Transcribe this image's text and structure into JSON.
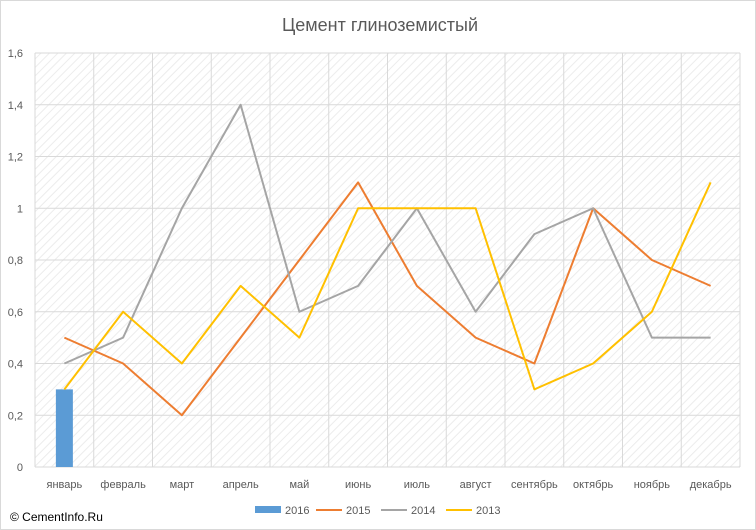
{
  "chart_data": {
    "type": "line",
    "title": "Цемент глиноземистый",
    "categories": [
      "январь",
      "февраль",
      "март",
      "апрель",
      "май",
      "июнь",
      "июль",
      "август",
      "сентябрь",
      "октябрь",
      "ноябрь",
      "декабрь"
    ],
    "ylim": [
      0,
      1.6
    ],
    "yticks": [
      "0",
      "0,2",
      "0,4",
      "0,6",
      "0,8",
      "1",
      "1,2",
      "1,4",
      "1,6"
    ],
    "ytick_values": [
      0,
      0.2,
      0.4,
      0.6,
      0.8,
      1.0,
      1.2,
      1.4,
      1.6
    ],
    "grid": true,
    "legend_position": "bottom",
    "series": [
      {
        "name": "2016",
        "type": "bar",
        "color": "#5B9BD5",
        "values": [
          0.3,
          null,
          null,
          null,
          null,
          null,
          null,
          null,
          null,
          null,
          null,
          null
        ]
      },
      {
        "name": "2015",
        "type": "line",
        "color": "#ED7D31",
        "values": [
          0.5,
          0.4,
          0.2,
          0.5,
          0.8,
          1.1,
          0.7,
          0.5,
          0.4,
          1.0,
          0.8,
          0.7
        ]
      },
      {
        "name": "2014",
        "type": "line",
        "color": "#A5A5A5",
        "values": [
          0.4,
          0.5,
          1.0,
          1.4,
          0.6,
          0.7,
          1.0,
          0.6,
          0.9,
          1.0,
          0.5,
          0.5
        ]
      },
      {
        "name": "2013",
        "type": "line",
        "color": "#FFC000",
        "values": [
          0.3,
          0.6,
          0.4,
          0.7,
          0.5,
          1.0,
          1.0,
          1.0,
          0.3,
          0.4,
          0.6,
          1.1
        ]
      }
    ]
  },
  "footer": {
    "copyright": "© CementInfo.Ru"
  }
}
